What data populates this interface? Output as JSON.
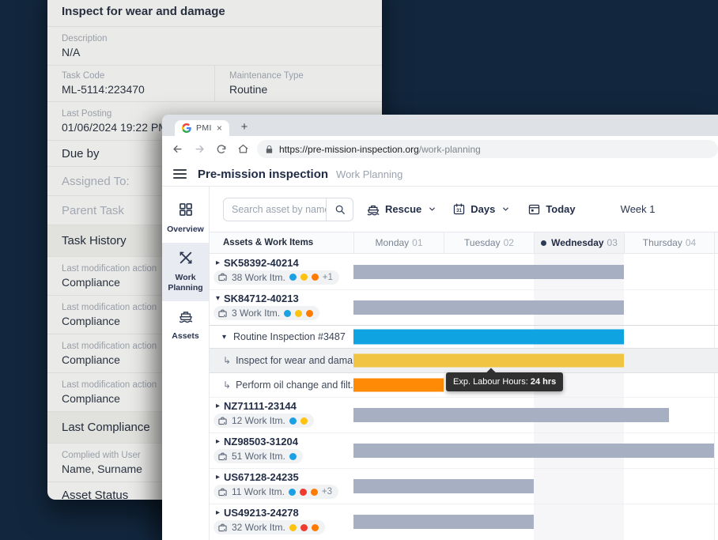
{
  "task_panel": {
    "title": "Inspect for wear and damage",
    "rows": [
      {
        "kind": "field",
        "label": "Description",
        "value": "N/A"
      },
      {
        "kind": "pair",
        "left": {
          "label": "Task Code",
          "value": "ML-5114:223470"
        },
        "right": {
          "label": "Maintenance Type",
          "value": "Routine"
        }
      },
      {
        "kind": "field",
        "label": "Last Posting",
        "value": "01/06/2024 19:22 PM"
      },
      {
        "kind": "section",
        "label": "Due by"
      },
      {
        "kind": "section-muted",
        "label": "Assigned To:"
      },
      {
        "kind": "section-muted",
        "label": "Parent Task"
      },
      {
        "kind": "section-shaded",
        "label": "Task History"
      },
      {
        "kind": "field",
        "label": "Last modification action",
        "value": "Compliance"
      },
      {
        "kind": "field",
        "label": "Last modification action",
        "value": "Compliance"
      },
      {
        "kind": "field",
        "label": "Last modification action",
        "value": "Compliance"
      },
      {
        "kind": "field",
        "label": "Last modification action",
        "value": "Compliance"
      },
      {
        "kind": "section-shaded",
        "label": "Last Compliance"
      },
      {
        "kind": "field",
        "label": "Complied with User",
        "value": "Name, Surname"
      },
      {
        "kind": "section",
        "label": "Asset Status"
      }
    ]
  },
  "browser": {
    "tab_title": "PMI",
    "close_glyph": "×",
    "new_tab_glyph": "+",
    "url_origin": "https://pre-mission-inspection.org",
    "url_path": "/work-planning"
  },
  "app": {
    "title": "Pre-mission inspection",
    "subtitle": "Work Planning",
    "sidebar": [
      {
        "id": "overview",
        "label": "Overview",
        "icon": "grid-icon",
        "active": false
      },
      {
        "id": "work-planning",
        "label": "Work Planning",
        "icon": "tools-icon",
        "active": true
      },
      {
        "id": "assets",
        "label": "Assets",
        "icon": "ship-icon",
        "active": false
      }
    ],
    "toolbar": {
      "search_placeholder": "Search asset by name",
      "asset_filter_label": "Rescue",
      "scale_label": "Days",
      "today_label": "Today",
      "week_label": "Week 1"
    },
    "gantt": {
      "corner_header": "Assets & Work Items",
      "days": [
        {
          "name": "Monday",
          "num": "01",
          "current": false
        },
        {
          "name": "Tuesday",
          "num": "02",
          "current": false
        },
        {
          "name": "Wednesday",
          "num": "03",
          "current": true
        },
        {
          "name": "Thursday",
          "num": "04",
          "current": false
        }
      ],
      "rows": [
        {
          "type": "asset",
          "caret": "▸",
          "name": "SK58392-40214",
          "items_label": "38 Work Itm.",
          "dots": [
            "blue",
            "yellow",
            "orange"
          ],
          "extra": "+1",
          "bar": {
            "color": "gray",
            "start_day": 0,
            "days": 3
          }
        },
        {
          "type": "asset",
          "caret": "▾",
          "name": "SK84712-40213",
          "items_label": "3 Work Itm.",
          "dots": [
            "blue",
            "yellow",
            "orange"
          ],
          "extra": "",
          "bar": {
            "color": "gray",
            "start_day": 0,
            "days": 3
          }
        },
        {
          "type": "work",
          "caret": "▾",
          "name": "Routine Inspection #3487",
          "bar": {
            "color": "blue",
            "start_day": 0,
            "days": 3
          }
        },
        {
          "type": "subtask",
          "caret": "↳",
          "name": "Inspect for wear and dama...",
          "highlight": true,
          "bar": {
            "color": "yellow",
            "start_day": 0,
            "days": 3
          }
        },
        {
          "type": "subtask",
          "caret": "↳",
          "name": "Perform oil change and filt...",
          "highlight": false,
          "bar": {
            "color": "orange",
            "start_day": 0,
            "days": 1
          },
          "tooltip": true
        },
        {
          "type": "asset",
          "caret": "▸",
          "name": "NZ71111-23144",
          "items_label": "12 Work Itm.",
          "dots": [
            "blue",
            "yellow"
          ],
          "extra": "",
          "bar": {
            "color": "gray",
            "start_day": 0,
            "days": 3.5
          }
        },
        {
          "type": "asset",
          "caret": "▸",
          "name": "NZ98503-31204",
          "items_label": "51 Work Itm.",
          "dots": [
            "blue"
          ],
          "extra": "",
          "bar": {
            "color": "gray",
            "start_day": 0,
            "days": 4
          }
        },
        {
          "type": "asset",
          "caret": "▸",
          "name": "US67128-24235",
          "items_label": "11 Work Itm.",
          "dots": [
            "blue",
            "red",
            "orange"
          ],
          "extra": "+3",
          "bar": {
            "color": "gray",
            "start_day": 0,
            "days": 2
          }
        },
        {
          "type": "asset",
          "caret": "▸",
          "name": "US49213-24278",
          "items_label": "32 Work Itm.",
          "dots": [
            "yellow",
            "red",
            "orange"
          ],
          "extra": "",
          "bar": {
            "color": "gray",
            "start_day": 0,
            "days": 2
          }
        }
      ],
      "tooltip": {
        "label": "Exp. Labour Hours: ",
        "value": "24 hrs"
      }
    }
  },
  "colors": {
    "bar_gray": "#A7B0C3",
    "bar_blue": "#10A3E2",
    "bar_yellow": "#F2C443",
    "bar_orange": "#FF8A05",
    "dot_blue": "#1BA0E4",
    "dot_yellow": "#FFC20E",
    "dot_orange": "#FF7B00",
    "dot_red": "#EF3B2F"
  }
}
